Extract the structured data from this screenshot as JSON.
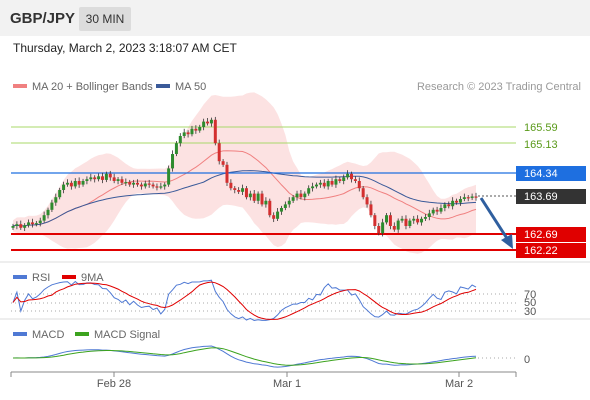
{
  "header": {
    "pair": "GBP/JPY",
    "timeframe": "30 MIN",
    "datetime": "Thursday, March 2, 2023 3:18:07 AM CET"
  },
  "legend": {
    "bollinger": "MA 20 + Bollinger Bands",
    "ma50": "MA 50",
    "credit": "Research © 2023 Trading Central",
    "rsi": "RSI",
    "rsi_ma": "9MA",
    "macd": "MACD",
    "macd_signal": "MACD Signal"
  },
  "colors": {
    "bullish": "#2e8b2e",
    "bearish": "#d32f2f",
    "ma20": "#f08080",
    "ma50": "#3a5a99",
    "resistance": "#9acd32",
    "pivot": "#1e6fe0",
    "support": "#e00000",
    "arrow": "#2f5f9f",
    "rsi": "#4f79d4",
    "macd_signal": "#3ca31e"
  },
  "chart_data": [
    {
      "type": "candlestick",
      "title": "GBP/JPY 30 MIN",
      "ylim": [
        161.9,
        166.4
      ],
      "x_ticks": [
        "Feb 28",
        "Mar 1",
        "Mar 2"
      ],
      "levels": [
        {
          "label": "165.59",
          "value": 165.59,
          "kind": "resistance"
        },
        {
          "label": "165.13",
          "value": 165.13,
          "kind": "resistance"
        },
        {
          "label": "164.34",
          "value": 164.34,
          "kind": "pivot"
        },
        {
          "label": "163.69",
          "value": 163.69,
          "kind": "last"
        },
        {
          "label": "162.69",
          "value": 162.69,
          "kind": "support"
        },
        {
          "label": "162.22",
          "value": 162.22,
          "kind": "support"
        }
      ],
      "close": [
        162.9,
        162.95,
        162.85,
        162.92,
        163.0,
        162.95,
        162.98,
        163.05,
        163.2,
        163.35,
        163.55,
        163.7,
        163.9,
        164.05,
        164.1,
        164.0,
        164.15,
        164.05,
        164.15,
        164.2,
        164.25,
        164.2,
        164.28,
        164.18,
        164.35,
        164.25,
        164.15,
        164.2,
        164.1,
        164.12,
        164.05,
        164.1,
        164.05,
        164.0,
        164.08,
        164.05,
        164.0,
        163.98,
        164.0,
        164.05,
        164.5,
        164.9,
        165.2,
        165.4,
        165.5,
        165.45,
        165.6,
        165.55,
        165.65,
        165.8,
        165.75,
        165.85,
        165.2,
        164.7,
        164.6,
        164.1,
        163.95,
        163.9,
        163.85,
        163.95,
        163.7,
        163.8,
        163.6,
        163.8,
        163.5,
        163.6,
        163.2,
        163.1,
        163.3,
        163.4,
        163.5,
        163.6,
        163.7,
        163.8,
        163.7,
        163.8,
        163.95,
        164.0,
        164.05,
        164.1,
        164.0,
        164.15,
        164.05,
        164.2,
        164.15,
        164.25,
        164.35,
        164.2,
        164.15,
        163.95,
        163.7,
        163.5,
        163.2,
        162.9,
        162.7,
        163.0,
        163.2,
        162.9,
        162.8,
        163.05,
        163.1,
        162.9,
        163.05,
        163.1,
        163.0,
        163.1,
        163.15,
        163.25,
        163.35,
        163.3,
        163.4,
        163.5,
        163.45,
        163.6,
        163.55,
        163.65,
        163.7,
        163.68,
        163.72,
        163.69
      ],
      "bollinger_note": "MA 20 with Bollinger Bands, MA 50"
    },
    {
      "type": "line",
      "title": "RSI",
      "ylim": [
        20,
        80
      ],
      "levels": [
        {
          "label": "70",
          "value": 70
        },
        {
          "label": "50",
          "value": 50
        },
        {
          "label": "30",
          "value": 30
        }
      ]
    },
    {
      "type": "line",
      "title": "MACD",
      "levels": [
        {
          "label": "0",
          "value": 0
        }
      ]
    }
  ]
}
